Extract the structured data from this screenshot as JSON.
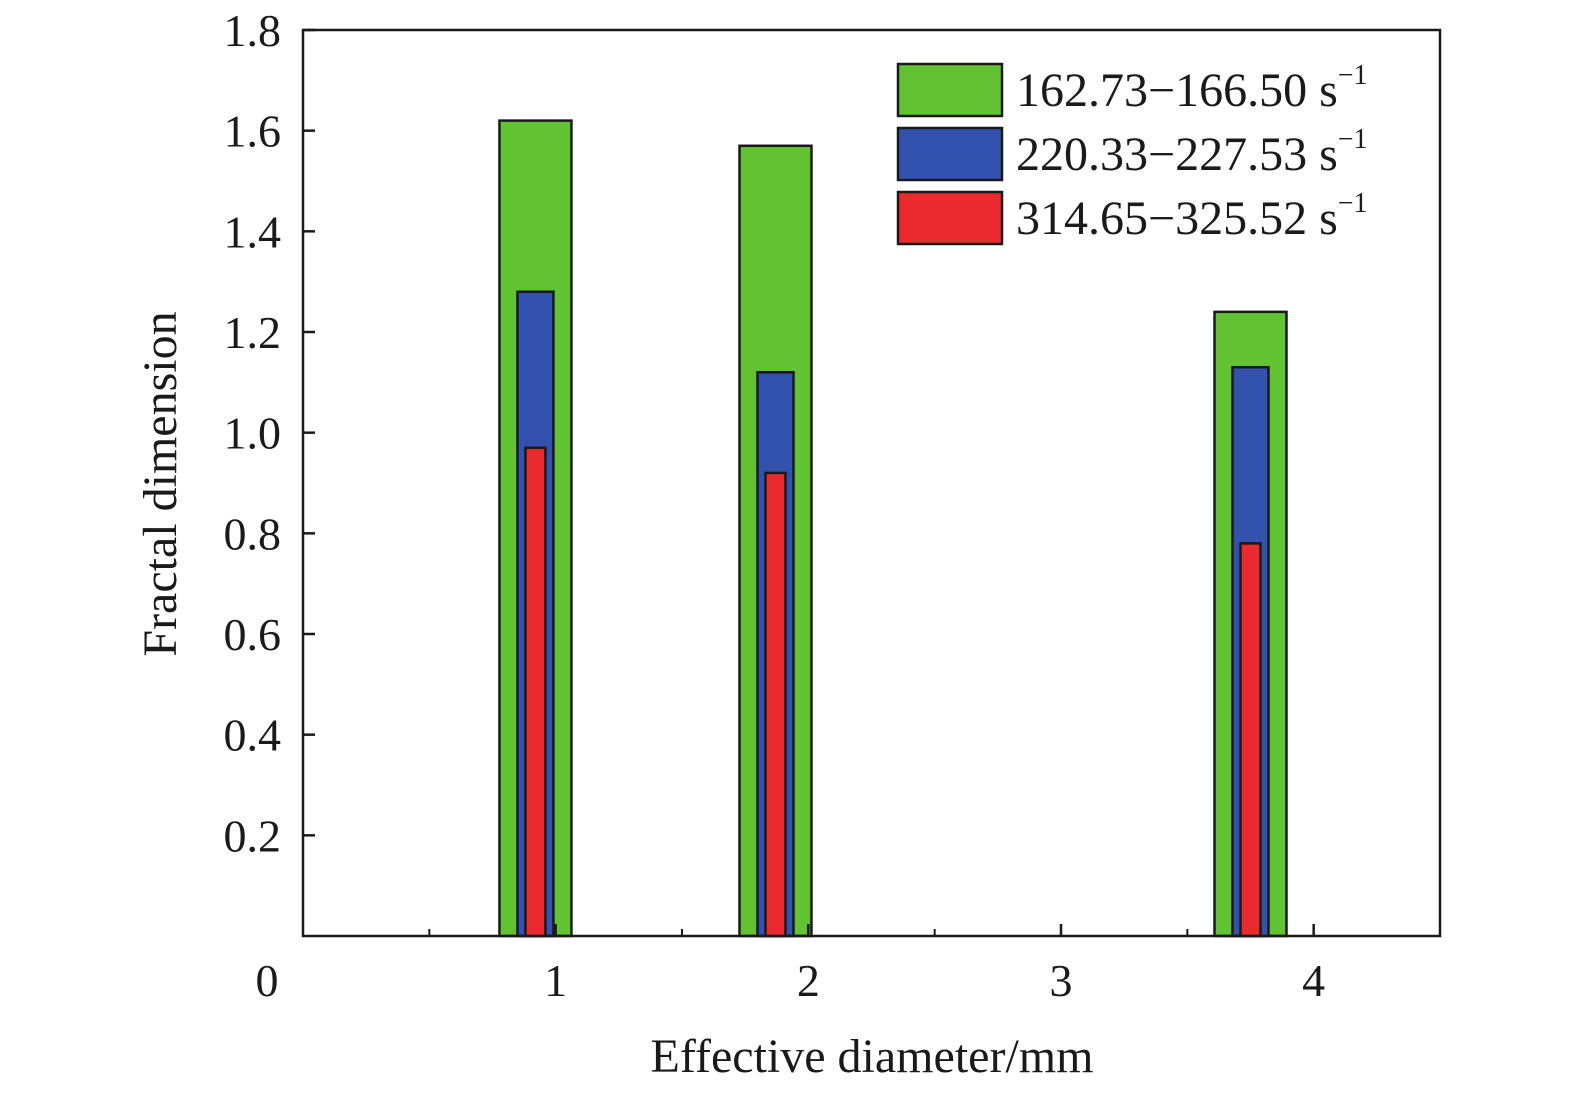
{
  "chart_data": {
    "type": "bar",
    "title": "",
    "xlabel": "Effective diameter/mm",
    "ylabel": "Fractal dimension",
    "xlim": [
      0,
      4.5
    ],
    "ylim": [
      0,
      1.8
    ],
    "x_ticks": [
      "0",
      "1",
      "2",
      "3",
      "4"
    ],
    "y_ticks": [
      "0.2",
      "0.4",
      "0.6",
      "0.8",
      "1.0",
      "1.2",
      "1.4",
      "1.6",
      "1.8"
    ],
    "grid": false,
    "legend_position": "top-right",
    "series": [
      {
        "name": "162.73−166.50 s",
        "name_superscript": "−1",
        "color": "#62c232",
        "x": [
          0.92,
          1.87,
          3.75
        ],
        "values": [
          1.62,
          1.57,
          1.24
        ]
      },
      {
        "name": "220.33−227.53 s",
        "name_superscript": "−1",
        "color": "#3352ad",
        "x": [
          0.92,
          1.87,
          3.75
        ],
        "values": [
          1.28,
          1.12,
          1.13
        ]
      },
      {
        "name": "314.65−325.52 s",
        "name_superscript": "−1",
        "color": "#ea2a2f",
        "x": [
          0.92,
          1.87,
          3.75
        ],
        "values": [
          0.97,
          0.92,
          0.78
        ]
      }
    ]
  }
}
